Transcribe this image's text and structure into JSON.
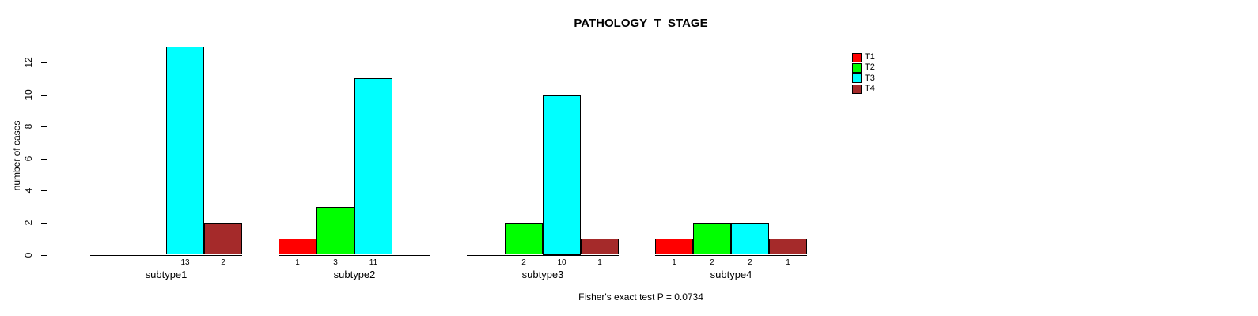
{
  "chart_data": {
    "type": "bar",
    "title": "PATHOLOGY_T_STAGE",
    "ylabel": "number of cases",
    "xlabel": "",
    "categories": [
      "subtype1",
      "subtype2",
      "subtype3",
      "subtype4"
    ],
    "series": [
      {
        "name": "T1",
        "color": "#FF0000",
        "values": [
          0,
          1,
          0,
          1
        ]
      },
      {
        "name": "T2",
        "color": "#00FF00",
        "values": [
          0,
          3,
          2,
          2
        ]
      },
      {
        "name": "T3",
        "color": "#00FFFF",
        "values": [
          13,
          11,
          10,
          2
        ]
      },
      {
        "name": "T4",
        "color": "#A52A2A",
        "values": [
          2,
          0,
          1,
          1
        ]
      }
    ],
    "yticks": [
      0,
      2,
      4,
      6,
      8,
      10,
      12
    ],
    "ylim": [
      0,
      13
    ],
    "grid": false,
    "legend_position": "top-right",
    "bar_value_labels": "shown under each nonzero bar",
    "annotation": "Fisher's exact test P = 0.0734"
  }
}
